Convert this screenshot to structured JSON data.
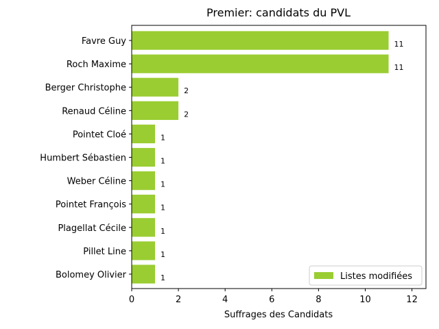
{
  "chart_data": {
    "type": "bar",
    "orientation": "horizontal",
    "title": "Premier: candidats du PVL",
    "xlabel": "Suffrages des Candidats",
    "ylabel": "",
    "xlim": [
      0,
      12.6
    ],
    "xticks": [
      0,
      2,
      4,
      6,
      8,
      10,
      12
    ],
    "categories": [
      "Favre Guy",
      "Roch Maxime",
      "Berger Christophe",
      "Renaud Céline",
      "Pointet Cloé",
      "Humbert Sébastien",
      "Weber Céline",
      "Pointet François",
      "Plagellat Cécile",
      "Pillet Line",
      "Bolomey Olivier"
    ],
    "series": [
      {
        "name": "Listes modifiées",
        "color": "#9acd32",
        "values": [
          11,
          11,
          2,
          2,
          1,
          1,
          1,
          1,
          1,
          1,
          1
        ]
      }
    ],
    "legend": {
      "position": "bottom-right"
    },
    "grid": false
  }
}
